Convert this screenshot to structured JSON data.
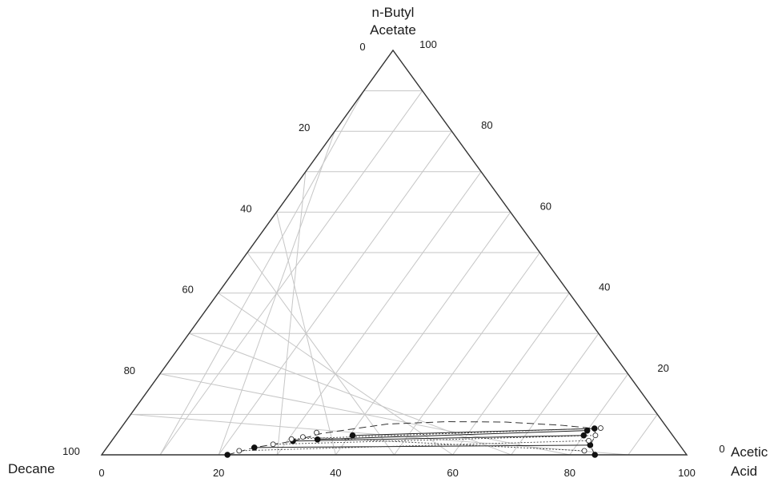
{
  "chart_data": {
    "type": "scatter",
    "subtype": "ternary",
    "corners": {
      "top": [
        "n-Butyl",
        "Acetate"
      ],
      "left": [
        "Decane"
      ],
      "right": [
        "Acetic",
        "Acid"
      ]
    },
    "left_edge_ticks": [
      "0",
      "20",
      "40",
      "60",
      "80",
      "100"
    ],
    "right_edge_ticks": [
      "100",
      "80",
      "60",
      "40",
      "20",
      "0"
    ],
    "bottom_edge_ticks": [
      "0",
      "20",
      "40",
      "60",
      "80",
      "100"
    ],
    "grid_step": 10,
    "grid": true,
    "series": [
      {
        "marker": "filled-circle",
        "points": [
          {
            "acid": 21.5,
            "butyl": 0.0
          },
          {
            "acid": 25.2,
            "butyl": 1.8
          },
          {
            "acid": 31.0,
            "butyl": 3.4
          },
          {
            "acid": 35.0,
            "butyl": 3.8
          },
          {
            "acid": 40.5,
            "butyl": 4.8
          },
          {
            "acid": 80.0,
            "butyl": 4.8
          },
          {
            "acid": 80.0,
            "butyl": 6.0
          },
          {
            "acid": 81.0,
            "butyl": 6.5
          },
          {
            "acid": 82.3,
            "butyl": 2.4
          },
          {
            "acid": 84.3,
            "butyl": 0.0
          }
        ]
      },
      {
        "marker": "open-circle",
        "points": [
          {
            "acid": 23.0,
            "butyl": 1.0
          },
          {
            "acid": 28.0,
            "butyl": 2.6
          },
          {
            "acid": 30.5,
            "butyl": 3.9
          },
          {
            "acid": 32.2,
            "butyl": 4.4
          },
          {
            "acid": 34.0,
            "butyl": 5.5
          },
          {
            "acid": 81.5,
            "butyl": 3.5
          },
          {
            "acid": 82.0,
            "butyl": 4.8
          },
          {
            "acid": 82.0,
            "butyl": 6.6
          },
          {
            "acid": 82.0,
            "butyl": 1.0
          }
        ]
      }
    ],
    "binodal_curve": [
      {
        "acid": 21.5,
        "butyl": 0.0
      },
      {
        "acid": 25.2,
        "butyl": 1.8
      },
      {
        "acid": 31.0,
        "butyl": 3.4
      },
      {
        "acid": 35.0,
        "butyl": 5.3
      },
      {
        "acid": 45.0,
        "butyl": 7.6
      },
      {
        "acid": 55.0,
        "butyl": 8.2
      },
      {
        "acid": 65.0,
        "butyl": 8.1
      },
      {
        "acid": 75.0,
        "butyl": 7.3
      },
      {
        "acid": 81.0,
        "butyl": 6.5
      },
      {
        "acid": 82.0,
        "butyl": 4.8
      },
      {
        "acid": 82.3,
        "butyl": 2.4
      },
      {
        "acid": 84.3,
        "butyl": 0.0
      }
    ],
    "tie_lines": [
      [
        {
          "acid": 21.5,
          "butyl": 0.0
        },
        {
          "acid": 84.3,
          "butyl": 0.0
        }
      ],
      [
        {
          "acid": 25.2,
          "butyl": 1.8
        },
        {
          "acid": 82.3,
          "butyl": 2.4
        }
      ],
      [
        {
          "acid": 31.0,
          "butyl": 3.4
        },
        {
          "acid": 80.0,
          "butyl": 4.8
        }
      ],
      [
        {
          "acid": 35.0,
          "butyl": 3.8
        },
        {
          "acid": 80.0,
          "butyl": 6.0
        }
      ],
      [
        {
          "acid": 40.5,
          "butyl": 4.8
        },
        {
          "acid": 81.0,
          "butyl": 6.5
        }
      ]
    ]
  }
}
